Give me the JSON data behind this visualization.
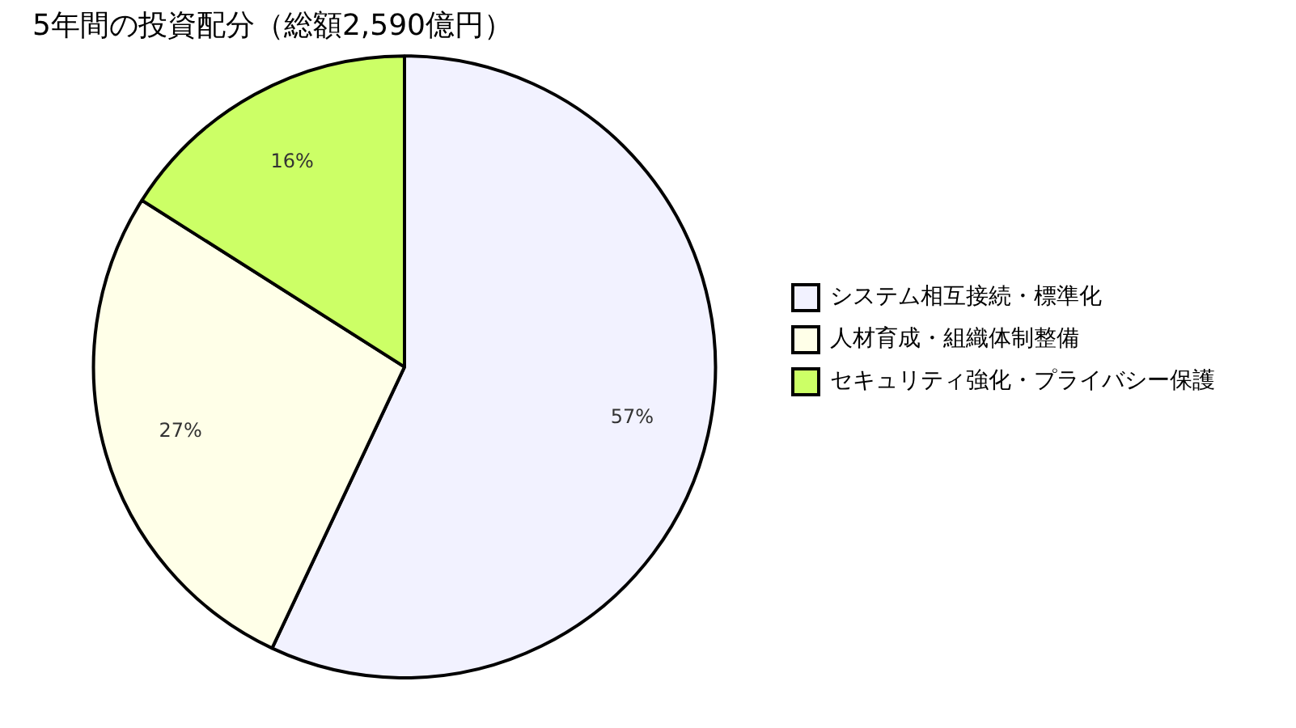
{
  "chart_data": {
    "type": "pie",
    "title": "5年間の投資配分（総額2,590億円）",
    "categories": [
      "システム相互接続・標準化",
      "人材育成・組織体制整備",
      "セキュリティ強化・プライバシー保護"
    ],
    "values": [
      57,
      27,
      16
    ],
    "value_labels": [
      "57%",
      "27%",
      "16%"
    ],
    "colors": [
      "#f2f2ff",
      "#ffffe8",
      "#ccff66"
    ],
    "legend": "right"
  }
}
